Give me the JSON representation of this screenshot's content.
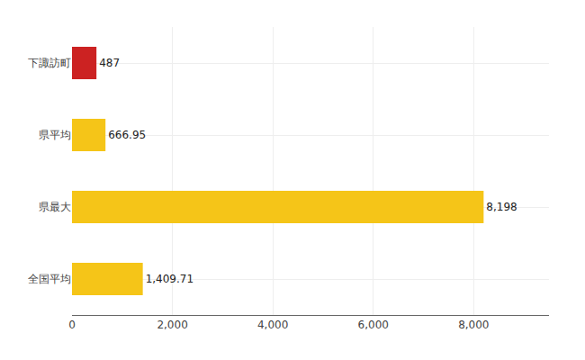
{
  "chart_data": {
    "type": "bar",
    "orientation": "horizontal",
    "categories": [
      "下諏訪町",
      "県平均",
      "県最大",
      "全国平均"
    ],
    "values": [
      487,
      666.95,
      8198,
      1409.71
    ],
    "value_labels": [
      "487",
      "666.95",
      "8,198",
      "1,409.71"
    ],
    "data_labels": true,
    "colors": [
      "#cc2222",
      "#f5c518",
      "#f5c518",
      "#f5c518"
    ],
    "xlim": [
      0,
      9500
    ],
    "xticks": [
      0,
      {
        "value": 2000,
        "label": "2,000"
      },
      {
        "value": 4000,
        "label": "4,000"
      },
      {
        "value": 6000,
        "label": "6,000"
      },
      {
        "value": 8000,
        "label": "8,000"
      }
    ],
    "grid": true
  }
}
